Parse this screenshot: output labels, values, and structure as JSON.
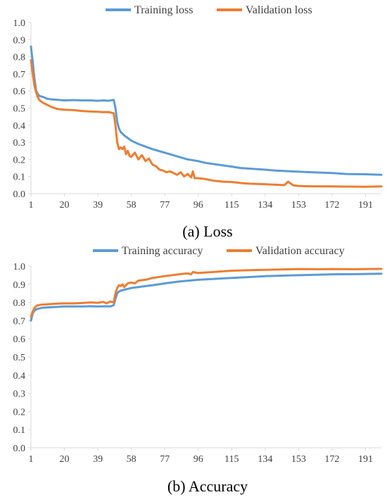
{
  "colors": {
    "training": "#5b9bd5",
    "validation": "#ed7d31",
    "axis": "#d9d9d9",
    "text": "#404040"
  },
  "chart_data": [
    {
      "type": "line",
      "title": "",
      "caption": "(a) Loss",
      "xlabel": "",
      "ylabel": "",
      "x_range": [
        1,
        200
      ],
      "ylim": [
        0,
        1.0
      ],
      "x_tick_labels": [
        "1",
        "20",
        "39",
        "58",
        "77",
        "96",
        "115",
        "134",
        "153",
        "172",
        "191"
      ],
      "x_ticks": [
        1,
        20,
        39,
        58,
        77,
        96,
        115,
        134,
        153,
        172,
        191
      ],
      "y_tick_labels": [
        "0.0",
        "0.1",
        "0.2",
        "0.3",
        "0.4",
        "0.5",
        "0.6",
        "0.7",
        "0.8",
        "0.9",
        "1.0"
      ],
      "y_ticks": [
        0,
        0.1,
        0.2,
        0.3,
        0.4,
        0.5,
        0.6,
        0.7,
        0.8,
        0.9,
        1.0
      ],
      "grid": false,
      "legend_position": "top",
      "series": [
        {
          "name": "Training loss",
          "color_key": "training",
          "x": [
            1,
            2,
            3,
            4,
            5,
            6,
            8,
            10,
            13,
            16,
            20,
            25,
            30,
            35,
            39,
            42,
            45,
            48,
            49,
            50,
            51,
            52,
            54,
            56,
            58,
            62,
            66,
            70,
            75,
            80,
            85,
            90,
            96,
            100,
            110,
            115,
            120,
            134,
            140,
            153,
            160,
            172,
            180,
            191,
            200
          ],
          "y": [
            0.86,
            0.77,
            0.67,
            0.6,
            0.58,
            0.57,
            0.565,
            0.555,
            0.55,
            0.548,
            0.545,
            0.547,
            0.545,
            0.545,
            0.543,
            0.545,
            0.543,
            0.548,
            0.5,
            0.42,
            0.38,
            0.36,
            0.34,
            0.325,
            0.31,
            0.29,
            0.275,
            0.26,
            0.245,
            0.23,
            0.215,
            0.2,
            0.19,
            0.18,
            0.165,
            0.158,
            0.15,
            0.14,
            0.135,
            0.128,
            0.125,
            0.12,
            0.115,
            0.113,
            0.11
          ]
        },
        {
          "name": "Validation loss",
          "color_key": "validation",
          "x": [
            1,
            2,
            3,
            4,
            5,
            6,
            8,
            10,
            13,
            16,
            20,
            25,
            30,
            35,
            39,
            42,
            45,
            48,
            49,
            50,
            51,
            52,
            53,
            54,
            55,
            56,
            57,
            58,
            60,
            62,
            64,
            66,
            68,
            70,
            72,
            74,
            76,
            78,
            80,
            84,
            86,
            88,
            90,
            92,
            93,
            94,
            96,
            100,
            105,
            110,
            115,
            120,
            125,
            134,
            140,
            145,
            147,
            150,
            153,
            160,
            172,
            180,
            191,
            200
          ],
          "y": [
            0.78,
            0.7,
            0.63,
            0.59,
            0.56,
            0.545,
            0.53,
            0.52,
            0.505,
            0.495,
            0.49,
            0.488,
            0.483,
            0.48,
            0.478,
            0.476,
            0.477,
            0.47,
            0.4,
            0.3,
            0.26,
            0.27,
            0.26,
            0.275,
            0.23,
            0.25,
            0.22,
            0.215,
            0.24,
            0.2,
            0.225,
            0.19,
            0.205,
            0.17,
            0.16,
            0.14,
            0.135,
            0.125,
            0.13,
            0.11,
            0.125,
            0.1,
            0.115,
            0.095,
            0.13,
            0.09,
            0.09,
            0.085,
            0.075,
            0.07,
            0.068,
            0.062,
            0.058,
            0.055,
            0.052,
            0.05,
            0.07,
            0.048,
            0.045,
            0.043,
            0.042,
            0.041,
            0.04,
            0.042
          ]
        }
      ]
    },
    {
      "type": "line",
      "title": "",
      "caption": "(b) Accuracy",
      "xlabel": "",
      "ylabel": "",
      "x_range": [
        1,
        200
      ],
      "ylim": [
        0,
        1.0
      ],
      "x_tick_labels": [
        "1",
        "20",
        "39",
        "58",
        "77",
        "96",
        "115",
        "134",
        "153",
        "172",
        "191"
      ],
      "x_ticks": [
        1,
        20,
        39,
        58,
        77,
        96,
        115,
        134,
        153,
        172,
        191
      ],
      "y_tick_labels": [
        "0.0",
        "0.1",
        "0.2",
        "0.3",
        "0.4",
        "0.5",
        "0.6",
        "0.7",
        "0.8",
        "0.9",
        "1.0"
      ],
      "y_ticks": [
        0,
        0.1,
        0.2,
        0.3,
        0.4,
        0.5,
        0.6,
        0.7,
        0.8,
        0.9,
        1.0
      ],
      "grid": false,
      "legend_position": "top",
      "series": [
        {
          "name": "Training accuracy",
          "color_key": "training",
          "x": [
            1,
            2,
            3,
            4,
            5,
            7,
            10,
            15,
            20,
            25,
            30,
            35,
            39,
            43,
            46,
            48,
            49,
            50,
            51,
            52,
            54,
            56,
            58,
            62,
            66,
            70,
            77,
            85,
            96,
            105,
            115,
            125,
            134,
            145,
            153,
            165,
            172,
            185,
            191,
            200
          ],
          "y": [
            0.7,
            0.74,
            0.755,
            0.762,
            0.765,
            0.77,
            0.773,
            0.775,
            0.778,
            0.778,
            0.778,
            0.779,
            0.778,
            0.779,
            0.778,
            0.785,
            0.82,
            0.85,
            0.86,
            0.865,
            0.87,
            0.875,
            0.88,
            0.885,
            0.89,
            0.895,
            0.905,
            0.915,
            0.925,
            0.93,
            0.935,
            0.94,
            0.945,
            0.948,
            0.95,
            0.953,
            0.955,
            0.956,
            0.957,
            0.958
          ]
        },
        {
          "name": "Validation accuracy",
          "color_key": "validation",
          "x": [
            1,
            2,
            3,
            4,
            5,
            7,
            10,
            15,
            20,
            25,
            30,
            35,
            39,
            42,
            44,
            46,
            48,
            49,
            50,
            51,
            52,
            53,
            54,
            56,
            58,
            60,
            62,
            66,
            70,
            77,
            85,
            90,
            92,
            93,
            96,
            105,
            115,
            125,
            134,
            145,
            153,
            165,
            172,
            185,
            191,
            200
          ],
          "y": [
            0.72,
            0.75,
            0.77,
            0.78,
            0.785,
            0.788,
            0.79,
            0.793,
            0.795,
            0.795,
            0.797,
            0.8,
            0.798,
            0.803,
            0.795,
            0.805,
            0.8,
            0.85,
            0.88,
            0.895,
            0.89,
            0.9,
            0.885,
            0.905,
            0.91,
            0.905,
            0.92,
            0.925,
            0.935,
            0.945,
            0.955,
            0.96,
            0.955,
            0.968,
            0.962,
            0.968,
            0.975,
            0.978,
            0.98,
            0.982,
            0.984,
            0.983,
            0.984,
            0.983,
            0.984,
            0.985
          ]
        }
      ]
    }
  ]
}
